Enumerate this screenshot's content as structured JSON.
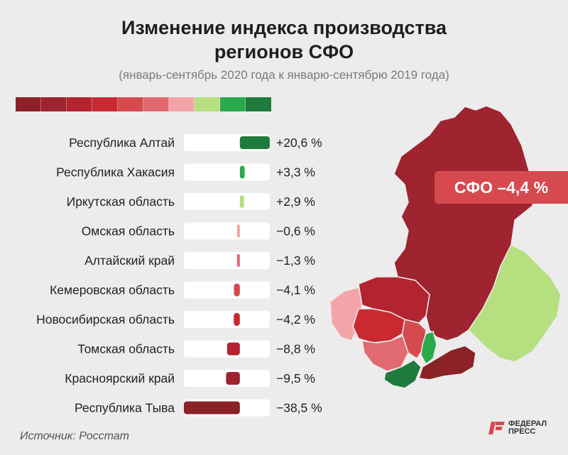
{
  "header": {
    "title_line1": "Изменение индекса производства",
    "title_line2": "регионов СФО",
    "subtitle": "(январь-сентябрь 2020 года к январю-сентябрю 2019 года)"
  },
  "scale_colors": [
    "#8b2228",
    "#9e2430",
    "#b42330",
    "#c92a32",
    "#d64a4f",
    "#e06a70",
    "#f4a4a8",
    "#b6df80",
    "#2aaa4a",
    "#1f7a3d"
  ],
  "chart_data": {
    "type": "bar",
    "title": "Изменение индекса производства регионов СФО",
    "subtitle": "(январь-сентябрь 2020 года к январю-сентябрю 2019 года)",
    "categories": [
      "Республика Алтай",
      "Республика Хакасия",
      "Иркутская область",
      "Омская область",
      "Алтайский край",
      "Кемеровская область",
      "Новосибирская область",
      "Томская область",
      "Красноярский край",
      "Республика Тыва"
    ],
    "values": [
      20.6,
      3.3,
      2.9,
      -0.6,
      -1.3,
      -4.1,
      -4.2,
      -8.8,
      -9.5,
      -38.5
    ],
    "value_labels": [
      "+20,6 %",
      "+3,3 %",
      "+2,9 %",
      "−0,6 %",
      "−1,3 %",
      "−4,1 %",
      "−4,2 %",
      "−8,8 %",
      "−9,5 %",
      "−38,5 %"
    ],
    "colors": [
      "#1f7a3d",
      "#2aaa4a",
      "#b6df80",
      "#f4a4a8",
      "#e06a70",
      "#d64a4f",
      "#c92a32",
      "#b42330",
      "#9e2430",
      "#8b2228"
    ],
    "xlim": [
      -38.5,
      20.6
    ]
  },
  "map": {
    "badge": "СФО –4,4 %"
  },
  "footer": {
    "source": "Источник: Росстат",
    "logo_line1": "ФЕДЕРАЛ",
    "logo_line2": "ПРЕСС"
  }
}
